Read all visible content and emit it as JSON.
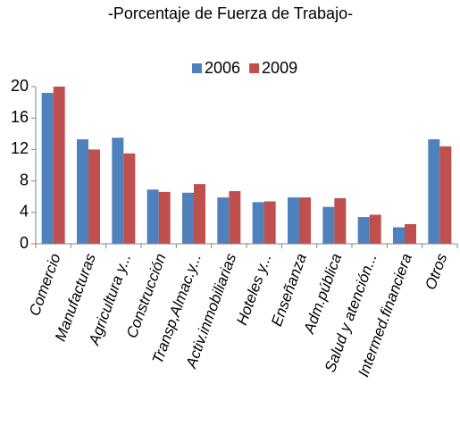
{
  "chart_data": {
    "type": "bar",
    "subtitle": "-Porcentaje de Fuerza de Trabajo-",
    "categories": [
      "Comercio",
      "Manufacturas",
      "Agricultura y...",
      "Construcción",
      "Transp,Almac.y...",
      "Activ.inmobiliarias",
      "Hoteles y...",
      "Enseñanza",
      "Adm.pública",
      "Salud y atención...",
      "Intermed.financiera",
      "Otros"
    ],
    "series": [
      {
        "name": "2006",
        "color": "#4f81bd",
        "values": [
          19.2,
          13.3,
          13.5,
          6.9,
          6.5,
          5.9,
          5.3,
          5.9,
          4.7,
          3.4,
          2.1,
          13.3
        ]
      },
      {
        "name": "2009",
        "color": "#c0504d",
        "values": [
          20.0,
          12.0,
          11.5,
          6.6,
          7.6,
          6.7,
          5.4,
          5.9,
          5.8,
          3.7,
          2.5,
          12.4
        ]
      }
    ],
    "ylim": [
      0,
      20
    ],
    "yticks": [
      0,
      4,
      8,
      12,
      16,
      20
    ],
    "legend": "top"
  }
}
